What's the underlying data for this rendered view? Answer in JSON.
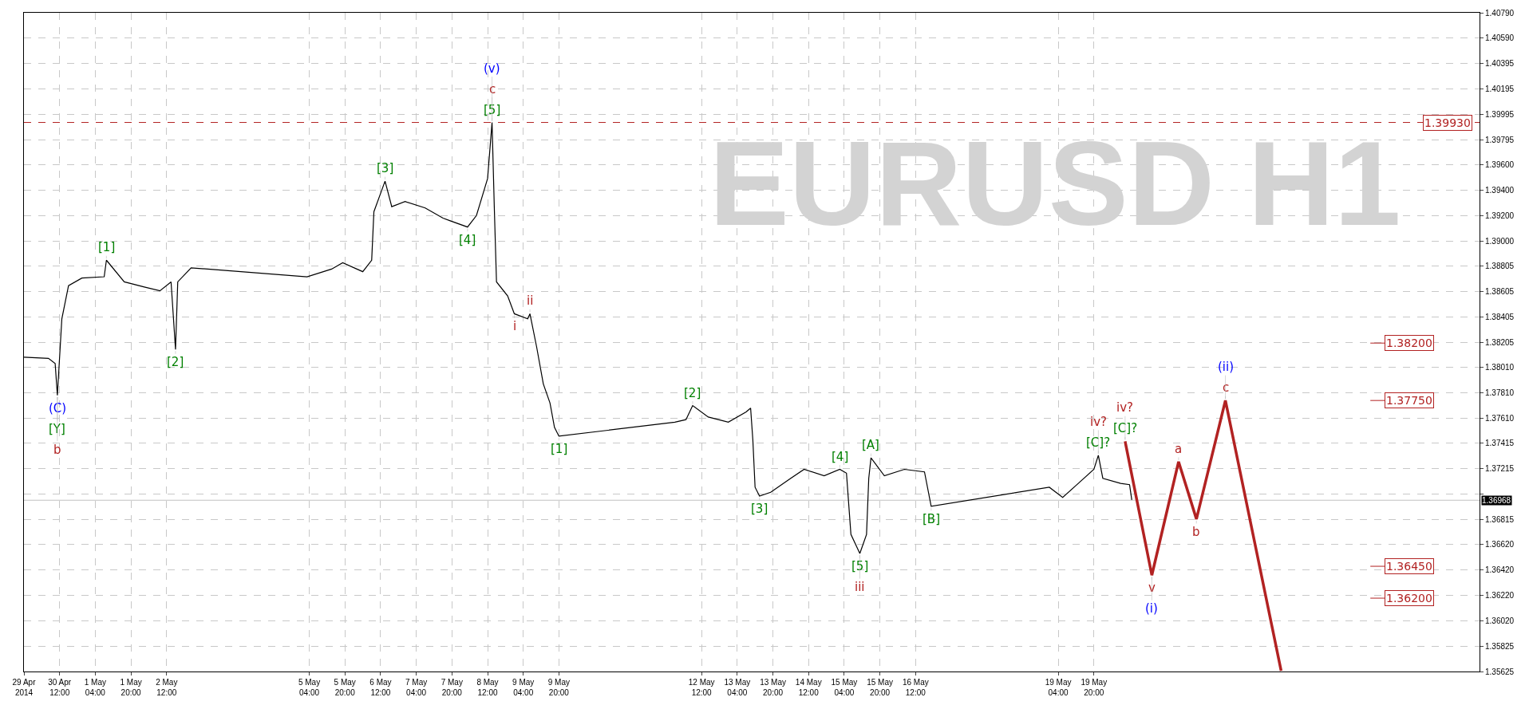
{
  "chart_data": {
    "type": "line",
    "title": "EURUSD H1",
    "xlim": [
      "2014-04-29T20:00",
      "2014-05-27T01:00"
    ],
    "ylim": [
      1.35625,
      1.4079
    ],
    "xticks": [
      {
        "value": "2014-04-29T20:00",
        "label": "29 Apr 2014"
      },
      {
        "value": "2014-04-30T12:00",
        "label": "30 Apr 12:00"
      },
      {
        "value": "2014-05-01T04:00",
        "label": "1 May 04:00"
      },
      {
        "value": "2014-05-01T20:00",
        "label": "1 May 20:00"
      },
      {
        "value": "2014-05-02T12:00",
        "label": "2 May 12:00"
      },
      {
        "value": "2014-05-05T04:00",
        "label": "5 May 04:00"
      },
      {
        "value": "2014-05-05T20:00",
        "label": "5 May 20:00"
      },
      {
        "value": "2014-05-06T12:00",
        "label": "6 May 12:00"
      },
      {
        "value": "2014-05-07T04:00",
        "label": "7 May 04:00"
      },
      {
        "value": "2014-05-07T20:00",
        "label": "7 May 20:00"
      },
      {
        "value": "2014-05-08T12:00",
        "label": "8 May 12:00"
      },
      {
        "value": "2014-05-09T04:00",
        "label": "9 May 04:00"
      },
      {
        "value": "2014-05-09T20:00",
        "label": "9 May 20:00"
      },
      {
        "value": "2014-05-12T12:00",
        "label": "12 May 12:00"
      },
      {
        "value": "2014-05-13T04:00",
        "label": "13 May 04:00"
      },
      {
        "value": "2014-05-13T20:00",
        "label": "13 May 20:00"
      },
      {
        "value": "2014-05-14T12:00",
        "label": "14 May 12:00"
      },
      {
        "value": "2014-05-15T04:00",
        "label": "15 May 04:00"
      },
      {
        "value": "2014-05-15T20:00",
        "label": "15 May 20:00"
      },
      {
        "value": "2014-05-16T12:00",
        "label": "16 May 12:00"
      },
      {
        "value": "2014-05-19T04:00",
        "label": "19 May 04:00"
      },
      {
        "value": "2014-05-19T20:00",
        "label": "19 May 20:00"
      }
    ],
    "yticks": [
      {
        "value": 1.4079,
        "label": "1.40790"
      },
      {
        "value": 1.4059,
        "label": "1.40590"
      },
      {
        "value": 1.40395,
        "label": "1.40395"
      },
      {
        "value": 1.40195,
        "label": "1.40195"
      },
      {
        "value": 1.39995,
        "label": "1.39995"
      },
      {
        "value": 1.39795,
        "label": "1.39795"
      },
      {
        "value": 1.396,
        "label": "1.39600"
      },
      {
        "value": 1.394,
        "label": "1.39400"
      },
      {
        "value": 1.392,
        "label": "1.39200"
      },
      {
        "value": 1.39,
        "label": "1.39000"
      },
      {
        "value": 1.38805,
        "label": "1.38805"
      },
      {
        "value": 1.38605,
        "label": "1.38605"
      },
      {
        "value": 1.38405,
        "label": "1.38405"
      },
      {
        "value": 1.38205,
        "label": "1.38205"
      },
      {
        "value": 1.3801,
        "label": "1.38010"
      },
      {
        "value": 1.3781,
        "label": "1.37810"
      },
      {
        "value": 1.3761,
        "label": "1.37610"
      },
      {
        "value": 1.37415,
        "label": "1.37415"
      },
      {
        "value": 1.37215,
        "label": "1.37215"
      },
      {
        "value": 1.37015,
        "label": null
      },
      {
        "value": 1.36815,
        "label": "1.36815"
      },
      {
        "value": 1.3662,
        "label": "1.36620"
      },
      {
        "value": 1.3642,
        "label": "1.36420"
      },
      {
        "value": 1.3622,
        "label": "1.36220"
      },
      {
        "value": 1.3602,
        "label": "1.36020"
      },
      {
        "value": 1.35825,
        "label": "1.35825"
      },
      {
        "value": 1.35625,
        "label": "1.35625"
      }
    ],
    "grid": true,
    "series": [
      {
        "color": "#000000",
        "x": [
          "2014-04-29T20:00",
          "2014-04-30T07:00",
          "2014-04-30T10:00",
          "2014-04-30T11:00",
          "2014-04-30T13:00",
          "2014-04-30T16:00",
          "2014-04-30T22:00",
          "2014-05-01T08:00",
          "2014-05-01T09:00",
          "2014-05-01T17:00",
          "2014-05-02T02:00",
          "2014-05-02T09:00",
          "2014-05-02T14:00",
          "2014-05-02T16:00",
          "2014-05-02T17:00",
          "2014-05-02T23:00",
          "2014-05-05T03:00",
          "2014-05-05T14:00",
          "2014-05-05T19:00",
          "2014-05-06T04:00",
          "2014-05-06T08:00",
          "2014-05-06T09:00",
          "2014-05-06T14:00",
          "2014-05-06T17:00",
          "2014-05-06T23:00",
          "2014-05-07T08:00",
          "2014-05-07T16:00",
          "2014-05-07T19:00",
          "2014-05-08T03:00",
          "2014-05-08T07:00",
          "2014-05-08T12:00",
          "2014-05-08T14:00",
          "2014-05-08T15:00",
          "2014-05-08T16:00",
          "2014-05-08T21:00",
          "2014-05-09T00:00",
          "2014-05-09T06:00",
          "2014-05-09T07:00",
          "2014-05-09T10:00",
          "2014-05-09T13:00",
          "2014-05-09T16:00",
          "2014-05-09T18:00",
          "2014-05-09T20:00",
          "2014-05-12T00:00",
          "2014-05-12T05:00",
          "2014-05-12T08:00",
          "2014-05-12T15:00",
          "2014-05-13T00:00",
          "2014-05-13T08:00",
          "2014-05-13T10:00",
          "2014-05-13T11:00",
          "2014-05-13T12:00",
          "2014-05-13T14:00",
          "2014-05-13T19:00",
          "2014-05-14T04:00",
          "2014-05-14T10:00",
          "2014-05-14T19:00",
          "2014-05-15T02:00",
          "2014-05-15T05:00",
          "2014-05-15T07:00",
          "2014-05-15T11:00",
          "2014-05-15T14:00",
          "2014-05-15T15:00",
          "2014-05-15T16:00",
          "2014-05-15T22:00",
          "2014-05-16T07:00",
          "2014-05-16T16:00",
          "2014-05-16T19:00",
          "2014-05-19T00:00",
          "2014-05-19T06:00",
          "2014-05-19T13:00",
          "2014-05-19T20:00",
          "2014-05-19T22:00",
          "2014-05-20T00:00",
          "2014-05-20T08:00",
          "2014-05-20T12:00",
          "2014-05-20T13:00"
        ],
        "values": [
          1.3809,
          1.3808,
          1.3804,
          1.3779,
          1.3839,
          1.3865,
          1.3871,
          1.3872,
          1.3885,
          1.3868,
          1.3864,
          1.3861,
          1.3868,
          1.3815,
          1.3868,
          1.3879,
          1.3872,
          1.3878,
          1.3883,
          1.3876,
          1.3885,
          1.3923,
          1.3947,
          1.3927,
          1.3931,
          1.3926,
          1.3918,
          1.3916,
          1.3911,
          1.392,
          1.3949,
          1.3993,
          1.3927,
          1.3868,
          1.3857,
          1.3843,
          1.3839,
          1.3843,
          1.3817,
          1.3788,
          1.3773,
          1.3754,
          1.3747,
          1.3758,
          1.376,
          1.3771,
          1.3762,
          1.3758,
          1.3766,
          1.3769,
          1.3744,
          1.3707,
          1.37,
          1.3703,
          1.3714,
          1.3721,
          1.3716,
          1.3721,
          1.3718,
          1.367,
          1.3655,
          1.367,
          1.3714,
          1.373,
          1.3716,
          1.3721,
          1.3719,
          1.3692,
          1.3707,
          1.3699,
          1.371,
          1.3721,
          1.3732,
          1.3714,
          1.371,
          1.3709,
          1.3697
        ]
      },
      {
        "color": "#b22222",
        "x": [
          "2014-05-20T10:00",
          "2014-05-20T22:00",
          "2014-05-21T10:00",
          "2014-05-21T18:00",
          "2014-05-22T07:00",
          "2014-05-23T08:00"
        ],
        "values": [
          1.3743,
          1.3638,
          1.3727,
          1.3682,
          1.3775,
          1.3563
        ]
      }
    ],
    "line_style": "solid",
    "ref_lines": [
      {
        "axis": "y",
        "value": 1.3993,
        "label": "1.39930",
        "color": "#b22222",
        "line_style": "dashed"
      },
      {
        "axis": "y",
        "value": 1.36968,
        "label": "1.36968",
        "color": "#c0c0c0",
        "line_style": "solid"
      },
      {
        "axis": "y",
        "value": 1.382,
        "label": "1.38200",
        "color": "#b22222"
      },
      {
        "axis": "y",
        "value": 1.3775,
        "label": "1.37750",
        "color": "#b22222"
      },
      {
        "axis": "y",
        "value": 1.3645,
        "label": "1.36450",
        "color": "#b22222"
      },
      {
        "axis": "y",
        "value": 1.362,
        "label": "1.36200",
        "color": "#b22222"
      }
    ],
    "annotations": [
      {
        "text": "(C)",
        "x": "2014-04-30T11:00",
        "y": 1.3779
      },
      {
        "text": "[Y]",
        "x": "2014-04-30T11:00",
        "y": 1.3779
      },
      {
        "text": "b",
        "x": "2014-04-30T11:00",
        "y": 1.3779
      },
      {
        "text": "[1]",
        "x": "2014-05-01T09:00",
        "y": 1.3885
      },
      {
        "text": "[2]",
        "x": "2014-05-02T16:00",
        "y": 1.3815
      },
      {
        "text": "[3]",
        "x": "2014-05-06T14:00",
        "y": 1.3947
      },
      {
        "text": "[4]",
        "x": "2014-05-08T03:00",
        "y": 1.3911
      },
      {
        "text": "[5]",
        "x": "2014-05-08T14:00",
        "y": 1.3993
      },
      {
        "text": "c",
        "x": "2014-05-08T14:00",
        "y": 1.3993
      },
      {
        "text": "(v)",
        "x": "2014-05-08T14:00",
        "y": 1.3993
      },
      {
        "text": "i",
        "x": "2014-05-09T00:00",
        "y": 1.3843
      },
      {
        "text": "ii",
        "x": "2014-05-09T07:00",
        "y": 1.3843
      },
      {
        "text": "[1]",
        "x": "2014-05-09T20:00",
        "y": 1.3747
      },
      {
        "text": "[2]",
        "x": "2014-05-12T08:00",
        "y": 1.3771
      },
      {
        "text": "[3]",
        "x": "2014-05-13T14:00",
        "y": 1.37
      },
      {
        "text": "[4]",
        "x": "2014-05-15T02:00",
        "y": 1.3721
      },
      {
        "text": "[A]",
        "x": "2014-05-15T16:00",
        "y": 1.373
      },
      {
        "text": "[5]",
        "x": "2014-05-15T11:00",
        "y": 1.3655
      },
      {
        "text": "iii",
        "x": "2014-05-15T11:00",
        "y": 1.3655
      },
      {
        "text": "[B]",
        "x": "2014-05-16T19:00",
        "y": 1.3692
      },
      {
        "text": "[C]?",
        "x": "2014-05-19T22:00",
        "y": 1.3732
      },
      {
        "text": "iv?",
        "x": "2014-05-19T22:00",
        "y": 1.3732
      },
      {
        "text": "[C]?",
        "x": "2014-05-20T10:00",
        "y": 1.3743
      },
      {
        "text": "iv?",
        "x": "2014-05-20T10:00",
        "y": 1.3743
      },
      {
        "text": "v",
        "x": "2014-05-20T22:00",
        "y": 1.3638
      },
      {
        "text": "(i)",
        "x": "2014-05-20T22:00",
        "y": 1.3638
      },
      {
        "text": "a",
        "x": "2014-05-21T10:00",
        "y": 1.3727
      },
      {
        "text": "b",
        "x": "2014-05-21T18:00",
        "y": 1.3682
      },
      {
        "text": "c",
        "x": "2014-05-22T07:00",
        "y": 1.3775
      },
      {
        "text": "(ii)",
        "x": "2014-05-22T07:00",
        "y": 1.3775
      }
    ]
  }
}
